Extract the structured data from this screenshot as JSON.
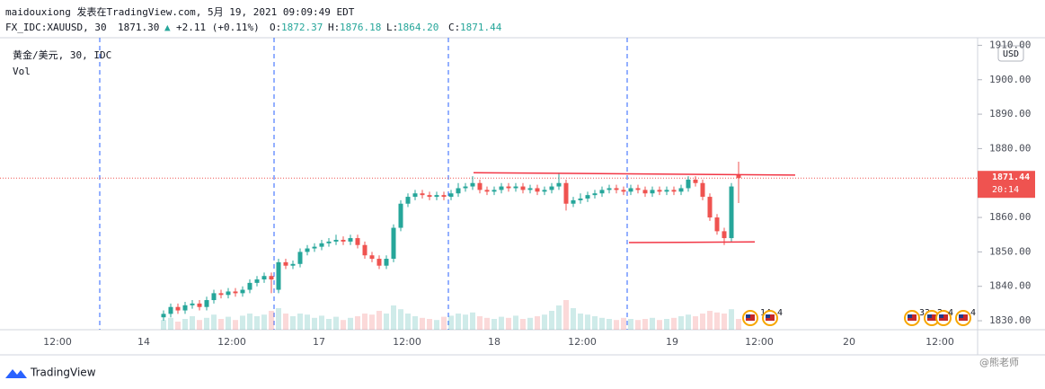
{
  "chart_data": {
    "type": "candlestick",
    "header": {
      "line1": "maidouxiong 发表在TradingView.com, 5月 19, 2021 09:09:49 EDT",
      "symbol": "FX_IDC:XAUUSD, 30",
      "last": "1871.30",
      "change": "+2.11 (+0.11%)",
      "open": "1872.37",
      "high": "1876.18",
      "low": "1864.20",
      "close": "1871.44"
    },
    "legend": {
      "name": "黄金/美元, 30, IDC",
      "volume": "Vol"
    },
    "currency": "USD",
    "up_color": "#26a69a",
    "down_color": "#ef5350",
    "ylim": [
      1827.4,
      1912.2
    ],
    "yticks": [
      {
        "value": 1830,
        "label": "1830.00"
      },
      {
        "value": 1840,
        "label": "1840.00"
      },
      {
        "value": 1850,
        "label": "1850.00"
      },
      {
        "value": 1860,
        "label": "1860.00"
      },
      {
        "value": 1870,
        "label": "1870.00"
      },
      {
        "value": 1880,
        "label": "1880.00"
      },
      {
        "value": 1890,
        "label": "1890.00"
      },
      {
        "value": 1900,
        "label": "1900.00"
      },
      {
        "value": 1910,
        "label": "1910.00"
      }
    ],
    "xtick_labels": [
      "12:00",
      "14",
      "12:00",
      "17",
      "12:00",
      "18",
      "12:00",
      "19",
      "12:00",
      "20",
      "12:00"
    ],
    "candles": [
      [
        1831,
        1833,
        1830,
        1832
      ],
      [
        1832,
        1835,
        1831,
        1834
      ],
      [
        1834,
        1835,
        1832,
        1833
      ],
      [
        1833,
        1835.5,
        1832,
        1834.5
      ],
      [
        1834.5,
        1836,
        1833.5,
        1835
      ],
      [
        1835,
        1836,
        1833,
        1834
      ],
      [
        1834,
        1837,
        1833,
        1836
      ],
      [
        1836,
        1839,
        1835,
        1838
      ],
      [
        1838,
        1839,
        1836.5,
        1837.5
      ],
      [
        1837.5,
        1839.5,
        1836.5,
        1838.5
      ],
      [
        1838.5,
        1839.5,
        1837,
        1838
      ],
      [
        1838,
        1840,
        1837,
        1839
      ],
      [
        1839,
        1842,
        1838,
        1841
      ],
      [
        1841,
        1843,
        1840,
        1842
      ],
      [
        1842,
        1844,
        1841,
        1843
      ],
      [
        1843,
        1844,
        1838,
        1842
      ],
      [
        1839,
        1848,
        1838,
        1847
      ],
      [
        1847,
        1848,
        1845,
        1846
      ],
      [
        1846,
        1847.5,
        1845,
        1846.5
      ],
      [
        1846.5,
        1851,
        1845.5,
        1850
      ],
      [
        1850,
        1852,
        1849,
        1851
      ],
      [
        1851,
        1852.5,
        1850,
        1851.5
      ],
      [
        1851.5,
        1853.5,
        1850.5,
        1852.5
      ],
      [
        1852.5,
        1854,
        1851.5,
        1853
      ],
      [
        1853,
        1855,
        1852,
        1853.5
      ],
      [
        1853.5,
        1854.5,
        1852,
        1853
      ],
      [
        1853,
        1855,
        1852,
        1854
      ],
      [
        1854,
        1855,
        1851,
        1852
      ],
      [
        1852,
        1853,
        1848,
        1849
      ],
      [
        1849,
        1850,
        1847,
        1848
      ],
      [
        1848,
        1849,
        1845,
        1846
      ],
      [
        1846,
        1849,
        1845,
        1848
      ],
      [
        1848,
        1858,
        1847,
        1857
      ],
      [
        1857,
        1865,
        1856,
        1864
      ],
      [
        1864,
        1867,
        1863,
        1866
      ],
      [
        1866,
        1868,
        1865,
        1867
      ],
      [
        1867,
        1868,
        1865.5,
        1866.5
      ],
      [
        1866.5,
        1867.5,
        1865,
        1866
      ],
      [
        1866,
        1867.5,
        1865,
        1866.5
      ],
      [
        1866.5,
        1867.5,
        1865,
        1866
      ],
      [
        1866,
        1868,
        1865,
        1867
      ],
      [
        1867,
        1870,
        1866,
        1868.5
      ],
      [
        1868.5,
        1870,
        1867.5,
        1869
      ],
      [
        1869,
        1872,
        1868,
        1870
      ],
      [
        1870,
        1871,
        1867,
        1868
      ],
      [
        1868,
        1869,
        1866.5,
        1867.5
      ],
      [
        1867.5,
        1869,
        1866.5,
        1868
      ],
      [
        1868,
        1870,
        1867,
        1869
      ],
      [
        1869,
        1870,
        1867.5,
        1868.5
      ],
      [
        1868.5,
        1870,
        1867.5,
        1869
      ],
      [
        1869,
        1870,
        1867,
        1868
      ],
      [
        1868,
        1869.5,
        1867,
        1868.5
      ],
      [
        1868.5,
        1869.5,
        1866.5,
        1867.5
      ],
      [
        1867.5,
        1869,
        1866.5,
        1868
      ],
      [
        1868,
        1870,
        1867,
        1869
      ],
      [
        1869,
        1873,
        1868,
        1870
      ],
      [
        1870,
        1871,
        1862,
        1864
      ],
      [
        1864,
        1866,
        1863,
        1865
      ],
      [
        1865,
        1867,
        1864,
        1865.5
      ],
      [
        1865.5,
        1867.5,
        1864.5,
        1866.5
      ],
      [
        1866.5,
        1868,
        1865.5,
        1867
      ],
      [
        1867,
        1869,
        1866,
        1868
      ],
      [
        1868,
        1869.5,
        1867,
        1868.5
      ],
      [
        1868.5,
        1869.5,
        1867,
        1868
      ],
      [
        1868,
        1869,
        1866.5,
        1867.5
      ],
      [
        1867.5,
        1869.5,
        1866.5,
        1868.5
      ],
      [
        1868.5,
        1869.5,
        1867,
        1868
      ],
      [
        1868,
        1869,
        1866,
        1867
      ],
      [
        1867,
        1869,
        1866,
        1868
      ],
      [
        1868,
        1869,
        1866.5,
        1867.5
      ],
      [
        1867.5,
        1869,
        1866.5,
        1868
      ],
      [
        1868,
        1869,
        1866.5,
        1867.5
      ],
      [
        1867.5,
        1869.5,
        1866.5,
        1868.5
      ],
      [
        1868.5,
        1872,
        1867.5,
        1871
      ],
      [
        1871,
        1872,
        1869,
        1870
      ],
      [
        1870,
        1871,
        1865,
        1866
      ],
      [
        1866,
        1867,
        1859,
        1860
      ],
      [
        1860,
        1861,
        1855,
        1856
      ],
      [
        1856,
        1857,
        1852,
        1854
      ],
      [
        1854,
        1870,
        1853,
        1869
      ],
      [
        1872.37,
        1876.18,
        1864.2,
        1871.44
      ]
    ],
    "volume": [
      18,
      22,
      15,
      20,
      25,
      18,
      22,
      28,
      20,
      24,
      18,
      26,
      30,
      25,
      28,
      35,
      40,
      30,
      25,
      30,
      28,
      22,
      26,
      20,
      24,
      18,
      22,
      25,
      30,
      28,
      35,
      30,
      45,
      38,
      30,
      25,
      22,
      20,
      18,
      24,
      26,
      30,
      28,
      32,
      25,
      22,
      20,
      24,
      22,
      26,
      20,
      22,
      25,
      28,
      35,
      45,
      55,
      40,
      30,
      28,
      25,
      22,
      20,
      18,
      22,
      20,
      18,
      20,
      22,
      18,
      20,
      22,
      25,
      28,
      25,
      30,
      35,
      32,
      30,
      38,
      20
    ],
    "levels": [
      {
        "from": 1873.0,
        "to": 1872.3
      },
      {
        "from": 1852.7,
        "to": 1852.9
      }
    ],
    "current_time": "20:14",
    "events": [
      "14",
      "4",
      "33",
      "2",
      "4",
      "4"
    ],
    "brand": "TradingView",
    "watermark": "@熊老师"
  }
}
